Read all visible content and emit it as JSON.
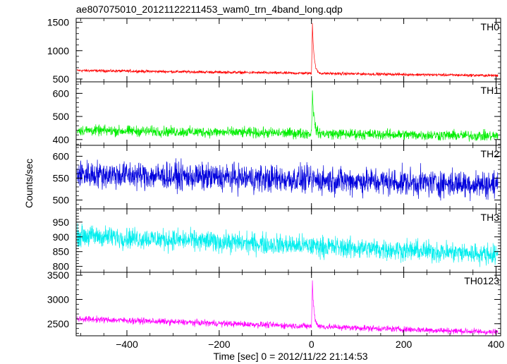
{
  "chart_data": {
    "type": "line",
    "title": "ae807075010_20121122211453_wam0_trn_4band_long.qdp",
    "xlabel": "Time [sec] 0 = 2012/11/22 21:14:53",
    "ylabel": "Counts/sec",
    "xlim": [
      -510,
      410
    ],
    "xticks": [
      -400,
      -200,
      0,
      200,
      400
    ],
    "grid": false,
    "panels": [
      {
        "name": "TH0",
        "color": "#ff0000",
        "ylim": [
          450,
          1570
        ],
        "yticks": [
          500,
          1000,
          1500
        ],
        "baseline_start": 650,
        "baseline_end": 560,
        "noise": 18,
        "peak": {
          "x": 2,
          "value": 1540
        }
      },
      {
        "name": "TH1",
        "color": "#00ee00",
        "ylim": [
          375,
          650
        ],
        "yticks": [
          400,
          500,
          600
        ],
        "baseline_start": 440,
        "baseline_end": 415,
        "noise": 16,
        "peak": {
          "x": 2,
          "value": 630
        }
      },
      {
        "name": "TH2",
        "color": "#0000dd",
        "ylim": [
          480,
          625
        ],
        "yticks": [
          500,
          550,
          600
        ],
        "baseline_start": 560,
        "baseline_end": 535,
        "noise": 22,
        "peak": null
      },
      {
        "name": "TH3",
        "color": "#00eeee",
        "ylim": [
          780,
          995
        ],
        "yticks": [
          800,
          850,
          900,
          950
        ],
        "baseline_start": 905,
        "baseline_end": 840,
        "noise": 25,
        "peak": null
      },
      {
        "name": "TH0123",
        "color": "#ff00ff",
        "ylim": [
          2250,
          3560
        ],
        "yticks": [
          2500,
          3000,
          3500
        ],
        "baseline_start": 2600,
        "baseline_end": 2320,
        "noise": 45,
        "peak": {
          "x": 2,
          "value": 3520
        }
      }
    ]
  }
}
